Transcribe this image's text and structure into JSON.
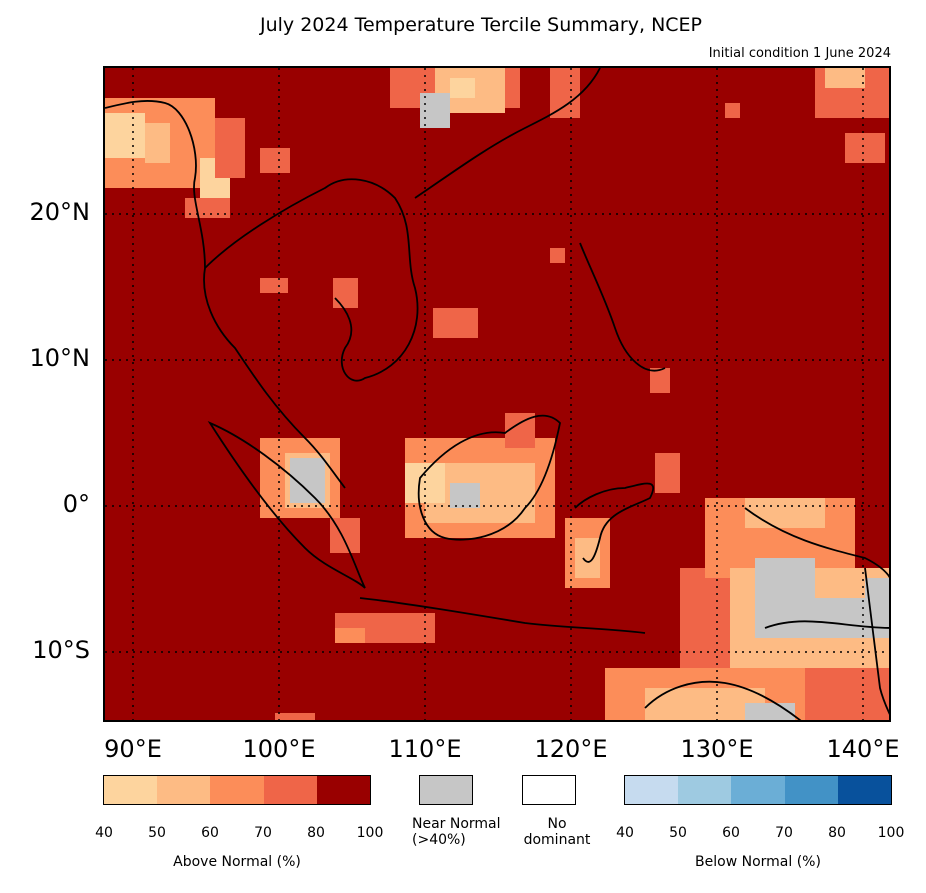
{
  "title": "July 2024 Temperature Tercile Summary, NCEP",
  "subtitle": "Initial condition 1 June 2024",
  "map": {
    "region": "Southeast Asia / Maritime Continent",
    "lat_labels": [
      "20°N",
      "10°N",
      "0°",
      "10°S"
    ],
    "lon_labels": [
      "90°E",
      "100°E",
      "110°E",
      "120°E",
      "130°E",
      "140°E"
    ],
    "background_color": "#990000",
    "gridlines": "dotted"
  },
  "legend": {
    "above": {
      "label": "Above Normal (%)",
      "ticks": [
        "40",
        "50",
        "60",
        "70",
        "80",
        "100"
      ],
      "colors": [
        "#fdd49e",
        "#fdbb84",
        "#fc8d59",
        "#ef6548",
        "#990000"
      ]
    },
    "near": {
      "label": "Near Normal\n(>40%)",
      "color": "#c6c6c6"
    },
    "nodominant": {
      "label": "No\ndominant",
      "color": "#ffffff"
    },
    "below": {
      "label": "Below Normal (%)",
      "ticks": [
        "40",
        "50",
        "60",
        "70",
        "80",
        "100"
      ],
      "colors": [
        "#c6dbef",
        "#9ecae1",
        "#6baed6",
        "#4292c6",
        "#08519c"
      ]
    }
  }
}
